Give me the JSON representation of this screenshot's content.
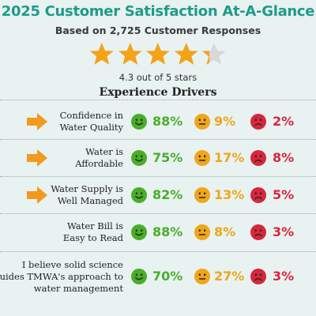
{
  "header": {
    "title": "2025 Customer Satisfaction At-A-Glance",
    "subtitle": "Based on 2,725 Customer Responses"
  },
  "rating": {
    "value": 4.3,
    "max": 5,
    "text": "4.3 out of 5 stars",
    "star_color": "#f3a21a",
    "empty_color": "#d8d8d8"
  },
  "section": {
    "heading": "Experience Drivers"
  },
  "colors": {
    "title": "#1f9a8b",
    "positive": "#4aad2a",
    "neutral": "#f0a51a",
    "negative": "#d7263d",
    "arrow": "#f39a1e"
  },
  "drivers": [
    {
      "line1": "Confidence in",
      "line2": "Water Quality",
      "line3": "",
      "arrow": true,
      "positive": "88%",
      "neutral": "9%",
      "negative": "2%"
    },
    {
      "line1": "Water is",
      "line2": "Affordable",
      "line3": "",
      "arrow": true,
      "positive": "75%",
      "neutral": "17%",
      "negative": "8%"
    },
    {
      "line1": "Water Supply is",
      "line2": "Well Managed",
      "line3": "",
      "arrow": true,
      "positive": "82%",
      "neutral": "13%",
      "negative": "5%"
    },
    {
      "line1": "Water Bill is",
      "line2": "Easy to Read",
      "line3": "",
      "arrow": false,
      "positive": "88%",
      "neutral": "8%",
      "negative": "3%"
    },
    {
      "line1": "I believe solid science",
      "line2": "guides TMWA's approach to",
      "line3": "water management",
      "arrow": false,
      "positive": "70%",
      "neutral": "27%",
      "negative": "3%"
    }
  ],
  "icons": {
    "arrow": "arrow-right-icon",
    "positive": "smiley-happy-icon",
    "neutral": "smiley-neutral-icon",
    "negative": "smiley-sad-icon"
  }
}
